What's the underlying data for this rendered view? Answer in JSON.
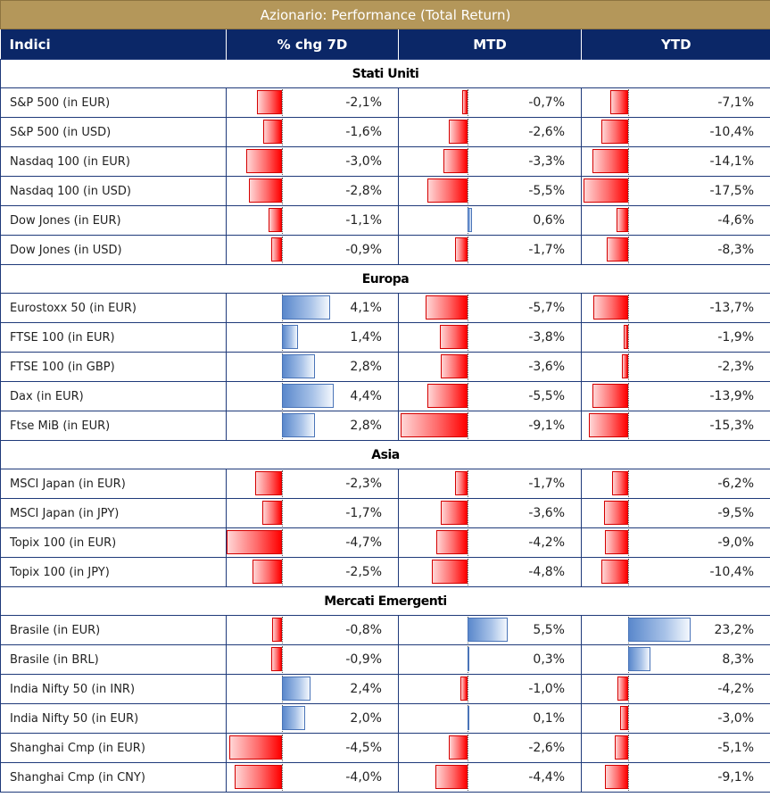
{
  "title": "Azionario: Performance (Total Return)",
  "headers": {
    "index": "Indici",
    "w7": "% chg 7D",
    "mtd": "MTD",
    "ytd": "YTD"
  },
  "colors": {
    "title_bg": "#b4975a",
    "header_bg": "#0b2767",
    "negative": "#ff0000",
    "positive": "#5a88cc"
  },
  "sections": [
    {
      "name": "Stati Uniti",
      "rows": [
        {
          "name": "S&P 500 (in EUR)",
          "w7": -2.1,
          "mtd": -0.7,
          "ytd": -7.1,
          "w7_label": "-2,1%",
          "mtd_label": "-0,7%",
          "ytd_label": "-7,1%"
        },
        {
          "name": "S&P 500 (in USD)",
          "w7": -1.6,
          "mtd": -2.6,
          "ytd": -10.4,
          "w7_label": "-1,6%",
          "mtd_label": "-2,6%",
          "ytd_label": "-10,4%"
        },
        {
          "name": "Nasdaq 100 (in EUR)",
          "w7": -3.0,
          "mtd": -3.3,
          "ytd": -14.1,
          "w7_label": "-3,0%",
          "mtd_label": "-3,3%",
          "ytd_label": "-14,1%"
        },
        {
          "name": "Nasdaq 100 (in USD)",
          "w7": -2.8,
          "mtd": -5.5,
          "ytd": -17.5,
          "w7_label": "-2,8%",
          "mtd_label": "-5,5%",
          "ytd_label": "-17,5%"
        },
        {
          "name": "Dow Jones (in EUR)",
          "w7": -1.1,
          "mtd": 0.6,
          "ytd": -4.6,
          "w7_label": "-1,1%",
          "mtd_label": "0,6%",
          "ytd_label": "-4,6%"
        },
        {
          "name": "Dow Jones (in USD)",
          "w7": -0.9,
          "mtd": -1.7,
          "ytd": -8.3,
          "w7_label": "-0,9%",
          "mtd_label": "-1,7%",
          "ytd_label": "-8,3%"
        }
      ]
    },
    {
      "name": "Europa",
      "rows": [
        {
          "name": "Eurostoxx 50 (in EUR)",
          "w7": 4.1,
          "mtd": -5.7,
          "ytd": -13.7,
          "w7_label": "4,1%",
          "mtd_label": "-5,7%",
          "ytd_label": "-13,7%"
        },
        {
          "name": "FTSE 100 (in EUR)",
          "w7": 1.4,
          "mtd": -3.8,
          "ytd": -1.9,
          "w7_label": "1,4%",
          "mtd_label": "-3,8%",
          "ytd_label": "-1,9%"
        },
        {
          "name": "FTSE 100 (in GBP)",
          "w7": 2.8,
          "mtd": -3.6,
          "ytd": -2.3,
          "w7_label": "2,8%",
          "mtd_label": "-3,6%",
          "ytd_label": "-2,3%"
        },
        {
          "name": "Dax (in EUR)",
          "w7": 4.4,
          "mtd": -5.5,
          "ytd": -13.9,
          "w7_label": "4,4%",
          "mtd_label": "-5,5%",
          "ytd_label": "-13,9%"
        },
        {
          "name": "Ftse MiB (in EUR)",
          "w7": 2.8,
          "mtd": -9.1,
          "ytd": -15.3,
          "w7_label": "2,8%",
          "mtd_label": "-9,1%",
          "ytd_label": "-15,3%"
        }
      ]
    },
    {
      "name": "Asia",
      "rows": [
        {
          "name": "MSCI Japan (in EUR)",
          "w7": -2.3,
          "mtd": -1.7,
          "ytd": -6.2,
          "w7_label": "-2,3%",
          "mtd_label": "-1,7%",
          "ytd_label": "-6,2%"
        },
        {
          "name": "MSCI Japan (in JPY)",
          "w7": -1.7,
          "mtd": -3.6,
          "ytd": -9.5,
          "w7_label": "-1,7%",
          "mtd_label": "-3,6%",
          "ytd_label": "-9,5%"
        },
        {
          "name": "Topix 100 (in EUR)",
          "w7": -4.7,
          "mtd": -4.2,
          "ytd": -9.0,
          "w7_label": "-4,7%",
          "mtd_label": "-4,2%",
          "ytd_label": "-9,0%"
        },
        {
          "name": "Topix 100 (in JPY)",
          "w7": -2.5,
          "mtd": -4.8,
          "ytd": -10.4,
          "w7_label": "-2,5%",
          "mtd_label": "-4,8%",
          "ytd_label": "-10,4%"
        }
      ]
    },
    {
      "name": "Mercati Emergenti",
      "rows": [
        {
          "name": "Brasile (in EUR)",
          "w7": -0.8,
          "mtd": 5.5,
          "ytd": 23.2,
          "w7_label": "-0,8%",
          "mtd_label": "5,5%",
          "ytd_label": "23,2%"
        },
        {
          "name": "Brasile (in BRL)",
          "w7": -0.9,
          "mtd": 0.3,
          "ytd": 8.3,
          "w7_label": "-0,9%",
          "mtd_label": "0,3%",
          "ytd_label": "8,3%"
        },
        {
          "name": "India Nifty 50 (in INR)",
          "w7": 2.4,
          "mtd": -1.0,
          "ytd": -4.2,
          "w7_label": "2,4%",
          "mtd_label": "-1,0%",
          "ytd_label": "-4,2%"
        },
        {
          "name": "India Nifty 50 (in EUR)",
          "w7": 2.0,
          "mtd": 0.1,
          "ytd": -3.0,
          "w7_label": "2,0%",
          "mtd_label": "0,1%",
          "ytd_label": "-3,0%"
        },
        {
          "name": "Shanghai Cmp (in EUR)",
          "w7": -4.5,
          "mtd": -2.6,
          "ytd": -5.1,
          "w7_label": "-4,5%",
          "mtd_label": "-2,6%",
          "ytd_label": "-5,1%"
        },
        {
          "name": "Shanghai Cmp (in CNY)",
          "w7": -4.0,
          "mtd": -4.4,
          "ytd": -9.1,
          "w7_label": "-4,0%",
          "mtd_label": "-4,4%",
          "ytd_label": "-9,1%"
        }
      ]
    }
  ]
}
